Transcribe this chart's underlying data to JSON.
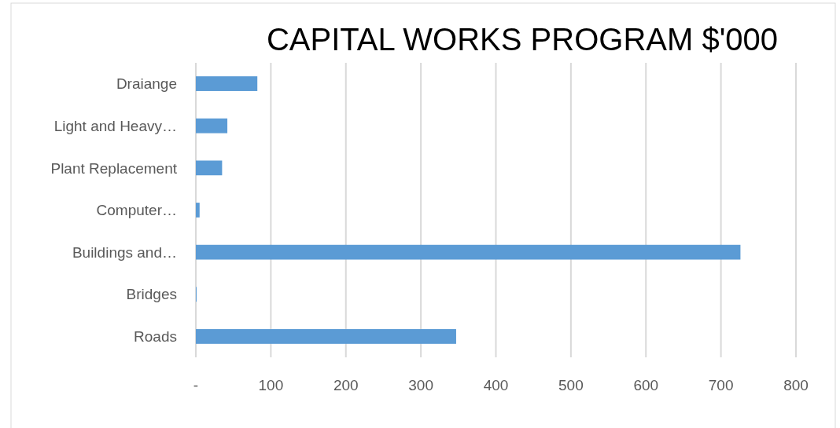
{
  "chart_data": {
    "type": "bar",
    "orientation": "horizontal",
    "title": "CAPITAL WORKS PROGRAM $'000",
    "categories": [
      "Draiange",
      "Light and Heavy…",
      "Plant Replacement",
      "Computer…",
      "Buildings and…",
      "Bridges",
      "Roads"
    ],
    "values": [
      82,
      42,
      35,
      5,
      726,
      1,
      347
    ],
    "color": "#5b9bd5",
    "xlim": [
      0,
      800
    ],
    "xticks": [
      {
        "value": 0,
        "label": "-"
      },
      100,
      200,
      300,
      400,
      500,
      600,
      700,
      800
    ],
    "grid": "x"
  }
}
